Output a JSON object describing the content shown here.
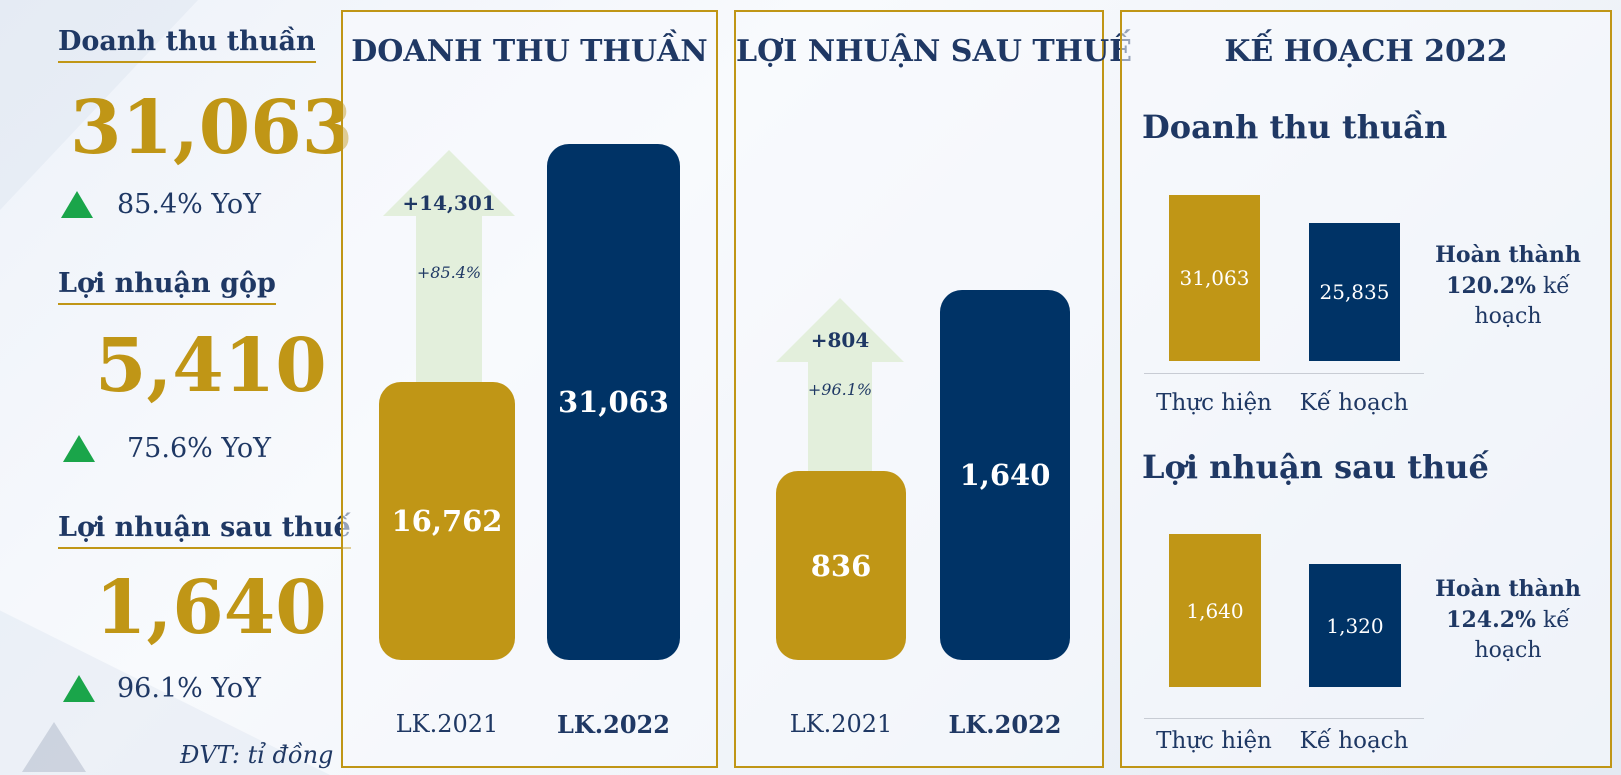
{
  "summary": {
    "items": [
      {
        "label": "Doanh thu thuần",
        "value": "31,063",
        "yoy": "85.4% YoY"
      },
      {
        "label": "Lợi nhuận gộp",
        "value": "5,410",
        "yoy": "75.6% YoY"
      },
      {
        "label": "Lợi nhuận sau thuế",
        "value": "1,640",
        "yoy": "96.1% YoY"
      }
    ],
    "unit_note": "ĐVT: tỉ đồng"
  },
  "colors": {
    "gold": "#c09616",
    "navy": "#003366",
    "green": "#1aa54a",
    "arrow": "#e3efdc",
    "title": "#1f3864"
  },
  "chart_data": [
    {
      "type": "bar",
      "title": "DOANH THU THUẦN",
      "categories": [
        "LK.2021",
        "LK.2022"
      ],
      "values": [
        16762,
        31063
      ],
      "value_labels": [
        "16,762",
        "31,063"
      ],
      "ylim": [
        0,
        31063
      ],
      "increase": {
        "label": "+14,301",
        "pct": "+85.4%"
      }
    },
    {
      "type": "bar",
      "title": "LỢI NHUẬN SAU THUẾ",
      "categories": [
        "LK.2021",
        "LK.2022"
      ],
      "values": [
        836,
        1640
      ],
      "value_labels": [
        "836",
        "1,640"
      ],
      "ylim": [
        0,
        1640
      ],
      "increase": {
        "label": "+804",
        "pct": "+96.1%"
      }
    },
    {
      "type": "bar",
      "title": "KẾ HOẠCH 2022",
      "subtitle": "Doanh thu thuần",
      "categories": [
        "Thực hiện",
        "Kế hoạch"
      ],
      "values": [
        31063,
        25835
      ],
      "value_labels": [
        "31,063",
        "25,835"
      ],
      "ylim": [
        0,
        31063
      ],
      "completion": {
        "prefix": "Hoàn thành",
        "pct": "120.2%",
        "suffix1": "kế",
        "suffix2": "hoạch"
      }
    },
    {
      "type": "bar",
      "subtitle": "Lợi nhuận sau thuế",
      "categories": [
        "Thực hiện",
        "Kế hoạch"
      ],
      "values": [
        1640,
        1320
      ],
      "value_labels": [
        "1,640",
        "1,320"
      ],
      "ylim": [
        0,
        1640
      ],
      "completion": {
        "prefix": "Hoàn thành",
        "pct": "124.2%",
        "suffix1": "kế",
        "suffix2": "hoạch"
      }
    }
  ]
}
